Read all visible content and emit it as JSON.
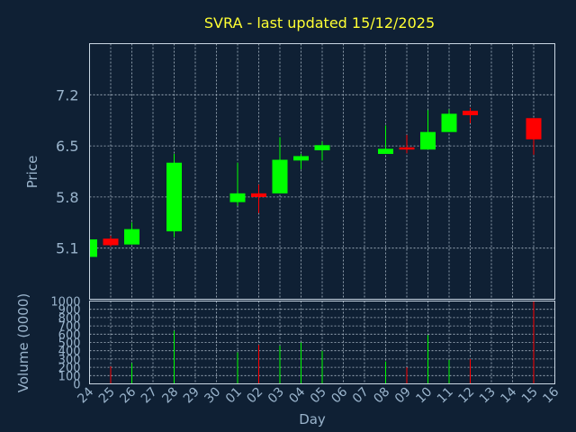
{
  "chart_data": {
    "type": "candlestick",
    "title": "SVRA - last updated 15/12/2025",
    "xlabel": "Day",
    "ylabel_price": "Price",
    "ylabel_volume": "Volume (0000)",
    "x_ticks": [
      "24",
      "25",
      "26",
      "27",
      "28",
      "29",
      "30",
      "01",
      "02",
      "03",
      "04",
      "05",
      "06",
      "07",
      "08",
      "09",
      "10",
      "11",
      "12",
      "13",
      "14",
      "15",
      "16"
    ],
    "price_ylim": [
      4.4,
      7.9
    ],
    "price_ticks": [
      5.1,
      5.8,
      6.5,
      7.2
    ],
    "volume_ylim": [
      0,
      1000
    ],
    "volume_ticks": [
      0,
      100,
      200,
      300,
      400,
      500,
      600,
      700,
      800,
      900,
      1000
    ],
    "grid": true,
    "colors": {
      "up": "#00ff00",
      "down": "#ff0000",
      "title": "#ffff33",
      "background": "#0f2034"
    },
    "candles": [
      {
        "day": "24",
        "open": 4.98,
        "high": 5.22,
        "low": 4.98,
        "close": 5.22
      },
      {
        "day": "25",
        "open": 5.23,
        "high": 5.27,
        "low": 5.12,
        "close": 5.14
      },
      {
        "day": "26",
        "open": 5.15,
        "high": 5.45,
        "low": 5.15,
        "close": 5.36
      },
      {
        "day": "28",
        "open": 5.33,
        "high": 6.39,
        "low": 5.25,
        "close": 6.27
      },
      {
        "day": "01",
        "open": 5.73,
        "high": 6.27,
        "low": 5.68,
        "close": 5.85
      },
      {
        "day": "02",
        "open": 5.85,
        "high": 5.97,
        "low": 5.58,
        "close": 5.8
      },
      {
        "day": "03",
        "open": 5.85,
        "high": 6.62,
        "low": 5.85,
        "close": 6.31
      },
      {
        "day": "04",
        "open": 6.3,
        "high": 6.39,
        "low": 6.18,
        "close": 6.36
      },
      {
        "day": "05",
        "open": 6.44,
        "high": 6.56,
        "low": 6.3,
        "close": 6.51
      },
      {
        "day": "08",
        "open": 6.39,
        "high": 6.78,
        "low": 6.39,
        "close": 6.46
      },
      {
        "day": "09",
        "open": 6.48,
        "high": 6.65,
        "low": 6.4,
        "close": 6.45
      },
      {
        "day": "10",
        "open": 6.45,
        "high": 6.99,
        "low": 6.45,
        "close": 6.69
      },
      {
        "day": "11",
        "open": 6.69,
        "high": 7.0,
        "low": 6.69,
        "close": 6.94
      },
      {
        "day": "12",
        "open": 6.98,
        "high": 7.02,
        "low": 6.81,
        "close": 6.92
      },
      {
        "day": "15",
        "open": 6.88,
        "high": 6.88,
        "low": 6.38,
        "close": 6.59
      }
    ],
    "volume": [
      {
        "day": "25",
        "value": 210,
        "dir": "down"
      },
      {
        "day": "26",
        "value": 250,
        "dir": "up"
      },
      {
        "day": "28",
        "value": 640,
        "dir": "up"
      },
      {
        "day": "01",
        "value": 380,
        "dir": "up"
      },
      {
        "day": "02",
        "value": 470,
        "dir": "down"
      },
      {
        "day": "03",
        "value": 460,
        "dir": "up"
      },
      {
        "day": "04",
        "value": 500,
        "dir": "up"
      },
      {
        "day": "05",
        "value": 400,
        "dir": "up"
      },
      {
        "day": "08",
        "value": 270,
        "dir": "up"
      },
      {
        "day": "09",
        "value": 200,
        "dir": "down"
      },
      {
        "day": "10",
        "value": 590,
        "dir": "up"
      },
      {
        "day": "11",
        "value": 290,
        "dir": "up"
      },
      {
        "day": "12",
        "value": 300,
        "dir": "down"
      },
      {
        "day": "15",
        "value": 1000,
        "dir": "down"
      }
    ]
  }
}
